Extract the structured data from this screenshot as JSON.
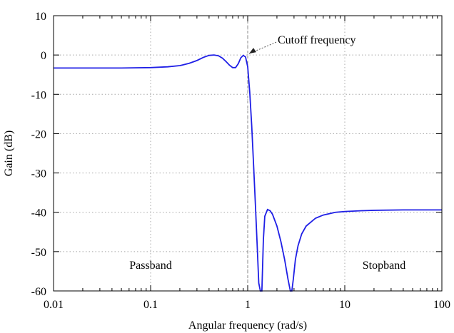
{
  "chart_data": {
    "type": "line",
    "x_scale": "log",
    "xlim": [
      0.01,
      100
    ],
    "ylim": [
      -60,
      10
    ],
    "x_ticks": [
      0.01,
      0.1,
      1,
      10,
      100
    ],
    "x_tick_labels": [
      "0.01",
      "0.1",
      "1",
      "10",
      "100"
    ],
    "y_ticks": [
      10,
      0,
      -10,
      -20,
      -30,
      -40,
      -50,
      -60
    ],
    "y_tick_labels": [
      "10",
      "0",
      "-10",
      "-20",
      "-30",
      "-40",
      "-50",
      "-60"
    ],
    "xlabel": "Angular frequency (rad/s)",
    "ylabel": "Gain (dB)",
    "grid": true,
    "cutoff_x": 1,
    "annotations": {
      "cutoff": "Cutoff frequency",
      "passband": "Passband",
      "stopband": "Stopband"
    },
    "series_color": "#1f1fe6",
    "series": [
      {
        "x": [
          0.01,
          0.02,
          0.05,
          0.1,
          0.15,
          0.2,
          0.25,
          0.3,
          0.35,
          0.4,
          0.45,
          0.5,
          0.55,
          0.6,
          0.65,
          0.7,
          0.75,
          0.8,
          0.85,
          0.9,
          0.95,
          1.0,
          1.05,
          1.1,
          1.15,
          1.2,
          1.25,
          1.3,
          1.35,
          1.4,
          1.45,
          1.5,
          1.6,
          1.7,
          1.8,
          2.0,
          2.2,
          2.4,
          2.6,
          2.75,
          2.85,
          2.95,
          3.1,
          3.3,
          3.6,
          4,
          5,
          6,
          8,
          10,
          15,
          20,
          40,
          70,
          100
        ],
        "y": [
          -3.3,
          -3.3,
          -3.3,
          -3.2,
          -3.0,
          -2.7,
          -2.1,
          -1.4,
          -0.6,
          -0.1,
          0.0,
          -0.2,
          -0.8,
          -1.7,
          -2.6,
          -3.2,
          -3.2,
          -2.2,
          -0.7,
          -0.1,
          -0.5,
          -3.0,
          -9.5,
          -18,
          -28,
          -38,
          -48,
          -58,
          -60,
          -60,
          -47,
          -41,
          -39.3,
          -39.6,
          -40.5,
          -43.5,
          -47.5,
          -52,
          -57,
          -60,
          -60,
          -57,
          -52,
          -48.5,
          -45.5,
          -43.5,
          -41.5,
          -40.7,
          -40.0,
          -39.8,
          -39.6,
          -39.5,
          -39.4,
          -39.4,
          -39.4
        ]
      }
    ]
  }
}
